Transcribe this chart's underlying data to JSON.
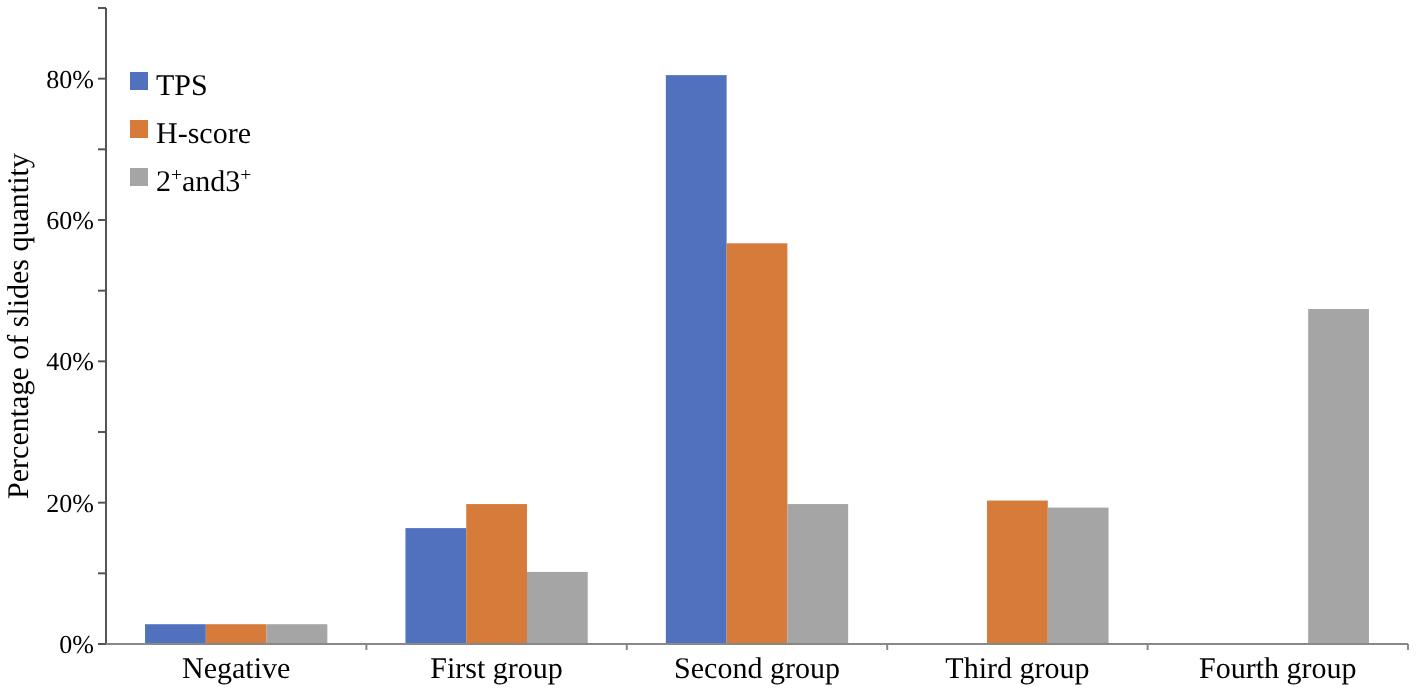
{
  "chart_data": {
    "type": "bar",
    "ylabel": "Percentage of slides quantity",
    "categories": [
      "Negative",
      "First group",
      "Second group",
      "Third group",
      "Fourth group"
    ],
    "series": [
      {
        "name": "TPS",
        "color": "#4f71be",
        "values": [
          2.8,
          16.4,
          80.5,
          null,
          null
        ]
      },
      {
        "name": "H-score",
        "color": "#d67b3a",
        "values": [
          2.8,
          19.8,
          56.7,
          20.3,
          null
        ]
      },
      {
        "name": "2$^{+}$and3$^{+}$",
        "color": "#a5a5a5",
        "values": [
          2.8,
          10.2,
          19.8,
          19.3,
          47.4
        ]
      }
    ],
    "ylim": [
      0,
      90
    ],
    "yticks": [
      {
        "value": 0,
        "label": "0%"
      },
      {
        "value": 10,
        "label": null
      },
      {
        "value": 20,
        "label": "20%"
      },
      {
        "value": 30,
        "label": null
      },
      {
        "value": 40,
        "label": "40%"
      },
      {
        "value": 50,
        "label": null
      },
      {
        "value": 60,
        "label": "60%"
      },
      {
        "value": 70,
        "label": null
      },
      {
        "value": 80,
        "label": "80%"
      },
      {
        "value": 90,
        "label": null
      }
    ],
    "legend": "top left",
    "grid": false
  }
}
